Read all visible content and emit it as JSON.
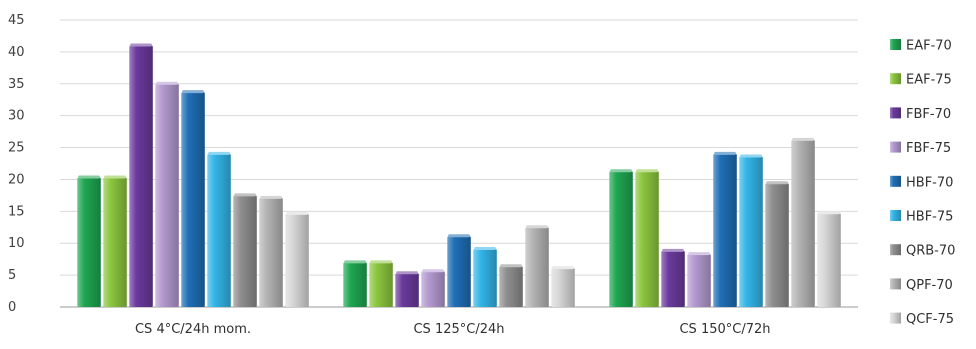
{
  "chart_data": {
    "type": "bar",
    "title": "",
    "xlabel": "",
    "ylabel": "",
    "ylim": [
      0,
      45
    ],
    "yticks": [
      0,
      5,
      10,
      15,
      20,
      25,
      30,
      35,
      40,
      45
    ],
    "grid": true,
    "legend_position": "right",
    "categories": [
      "CS 4°C/24h mom.",
      "CS 125°C/24h",
      "CS 150°C/72h"
    ],
    "series": [
      {
        "name": "EAF-70",
        "color": "#1fa651",
        "values": [
          20.3,
          7.0,
          21.3
        ]
      },
      {
        "name": "EAF-75",
        "color": "#8cc63f",
        "values": [
          20.3,
          7.0,
          21.3
        ]
      },
      {
        "name": "FBF-70",
        "color": "#6a3a9c",
        "values": [
          41.0,
          5.3,
          8.8
        ]
      },
      {
        "name": "FBF-75",
        "color": "#b39ad0",
        "values": [
          35.0,
          5.6,
          8.3
        ]
      },
      {
        "name": "HBF-70",
        "color": "#1f6fb5",
        "values": [
          33.7,
          11.1,
          24.0
        ]
      },
      {
        "name": "HBF-75",
        "color": "#33b5e8",
        "values": [
          24.0,
          9.1,
          23.6
        ]
      },
      {
        "name": "QRB-70",
        "color": "#8f8f8f",
        "values": [
          17.5,
          6.4,
          19.4
        ]
      },
      {
        "name": "QPF-70",
        "color": "#b5b5b5",
        "values": [
          17.1,
          12.5,
          26.2
        ]
      },
      {
        "name": "QCF-75",
        "color": "#d8d8d8",
        "values": [
          14.6,
          6.1,
          14.7
        ]
      }
    ]
  }
}
